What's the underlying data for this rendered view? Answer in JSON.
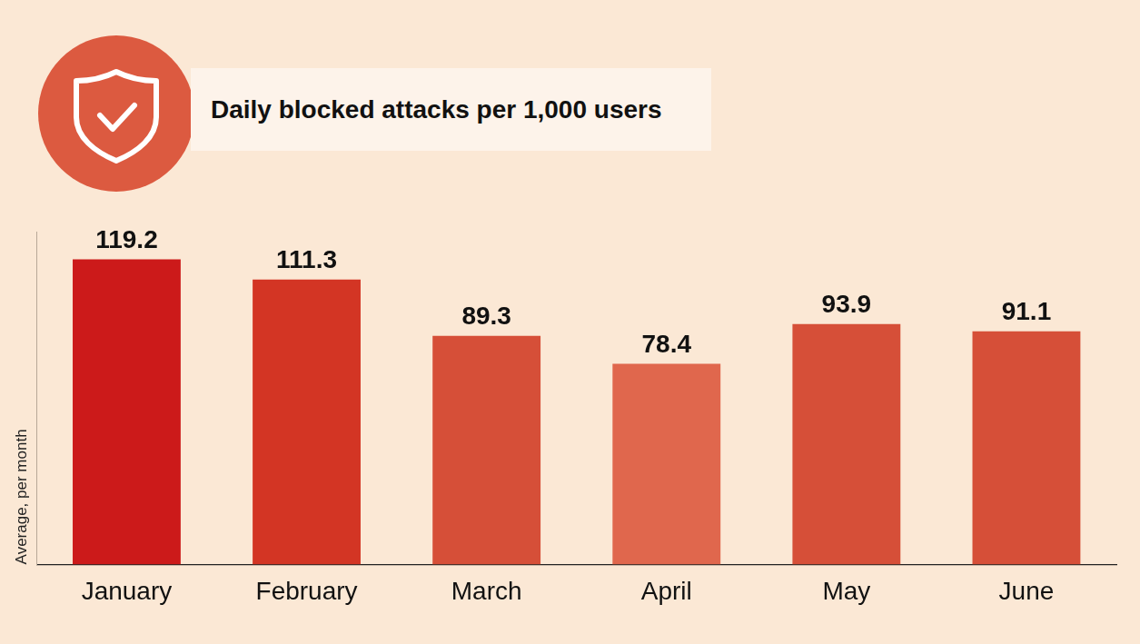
{
  "chart_data": {
    "type": "bar",
    "title": "Daily blocked attacks per 1,000 users",
    "ylabel": "Average, per month",
    "categories": [
      "January",
      "February",
      "March",
      "April",
      "May",
      "June"
    ],
    "values": [
      119.2,
      111.3,
      89.3,
      78.4,
      93.9,
      91.1
    ],
    "colors": [
      "#cc1a1a",
      "#d33524",
      "#d64f38",
      "#e0674d",
      "#d64f38",
      "#d64f38"
    ],
    "ylim": [
      0,
      130
    ],
    "grid": false,
    "data_labels": true,
    "tick_labels": "x"
  }
}
